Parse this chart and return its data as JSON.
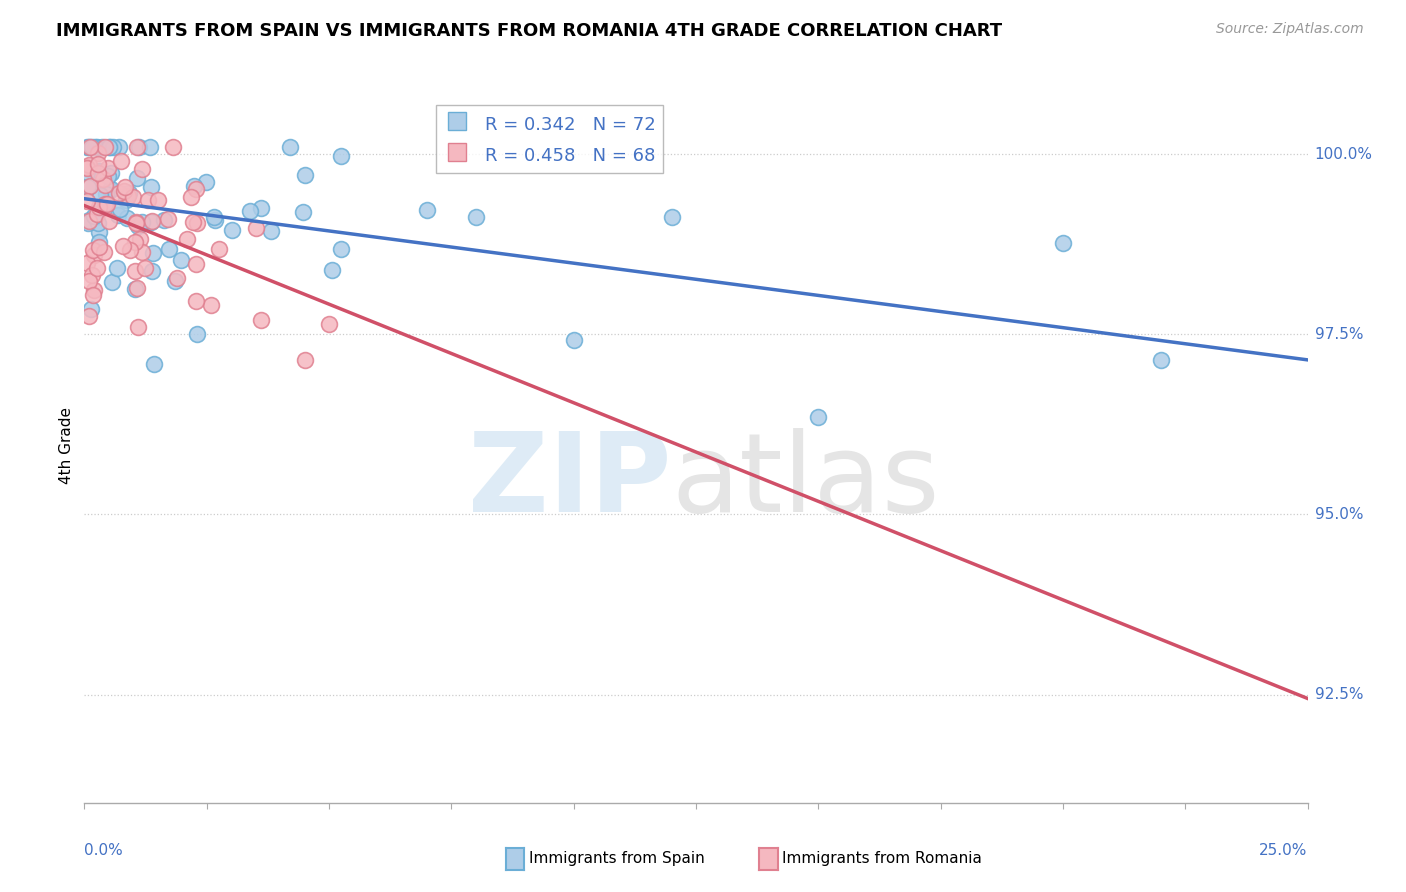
{
  "title": "IMMIGRANTS FROM SPAIN VS IMMIGRANTS FROM ROMANIA 4TH GRADE CORRELATION CHART",
  "source": "Source: ZipAtlas.com",
  "ylabel": "4th Grade",
  "xlim": [
    0.0,
    25.0
  ],
  "ylim": [
    91.0,
    100.9
  ],
  "spain_color_edge": "#6baed6",
  "spain_color_fill": "#aecde8",
  "romania_color_edge": "#e08090",
  "romania_color_fill": "#f5b8c0",
  "spain_line_color": "#4472c4",
  "romania_line_color": "#d05068",
  "legend_spain_label": "R = 0.342   N = 72",
  "legend_romania_label": "R = 0.458   N = 68",
  "spain_N": 72,
  "romania_N": 68,
  "y_tick_vals": [
    92.5,
    95.0,
    97.5,
    100.0
  ],
  "y_tick_labels": [
    "92.5%",
    "95.0%",
    "97.5%",
    "100.0%"
  ],
  "ytick_color": "#4472c4",
  "xtick_left_label": "0.0%",
  "xtick_right_label": "25.0%",
  "xtick_color": "#4472c4",
  "grid_color": "#cccccc",
  "watermark_zip_color": "#c8dff0",
  "watermark_atlas_color": "#d0d0d0",
  "legend_box_color": "#aaaaaa",
  "bottom_legend_spain": "Immigrants from Spain",
  "bottom_legend_romania": "Immigrants from Romania"
}
